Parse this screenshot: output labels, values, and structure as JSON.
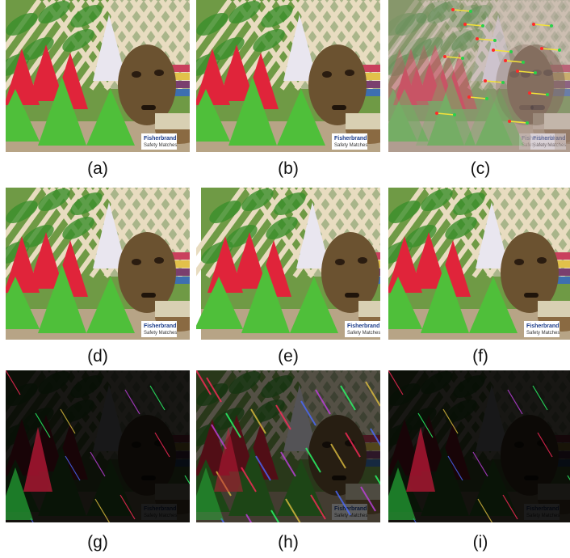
{
  "figure": {
    "panels": [
      {
        "label": "(a)",
        "variant": "scene"
      },
      {
        "label": "(b)",
        "variant": "scene"
      },
      {
        "label": "(c)",
        "variant": "anaglyph-matches"
      },
      {
        "label": "(d)",
        "variant": "scene"
      },
      {
        "label": "(e)",
        "variant": "scene-shifted"
      },
      {
        "label": "(f)",
        "variant": "scene"
      },
      {
        "label": "(g)",
        "variant": "diff-low"
      },
      {
        "label": "(h)",
        "variant": "diff-high"
      },
      {
        "label": "(i)",
        "variant": "diff-low"
      }
    ],
    "sign_brand": "Fisher",
    "sign_brand_suffix": "brand",
    "sign_product_line1": "Safety",
    "sign_product_line2": "Matches",
    "colors": {
      "lattice": "#e8dcc0",
      "leaf_green": "#4fbf3a",
      "cone_red": "#e0243a",
      "mask_brown": "#6b5230",
      "background": "#ffffff"
    }
  }
}
